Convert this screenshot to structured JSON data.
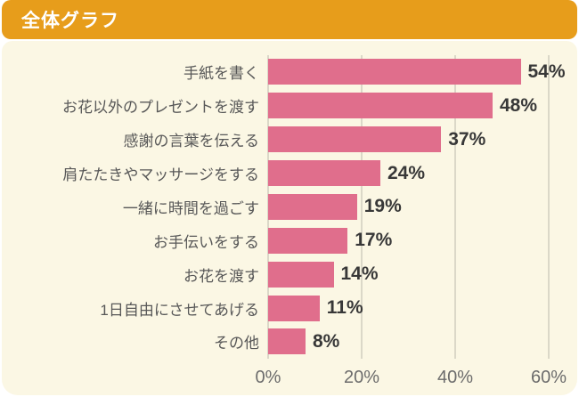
{
  "header": {
    "title": "全体グラフ",
    "background_color": "#E79D1B",
    "text_color": "#FFFFFF"
  },
  "chart_data": {
    "type": "bar",
    "orientation": "horizontal",
    "categories": [
      "手紙を書く",
      "お花以外のプレゼントを渡す",
      "感謝の言葉を伝える",
      "肩たたきやマッサージをする",
      "一緒に時間を過ごす",
      "お手伝いをする",
      "お花を渡す",
      "1日自由にさせてあげる",
      "その他"
    ],
    "values": [
      54,
      48,
      37,
      24,
      19,
      17,
      14,
      11,
      8
    ],
    "value_labels": [
      "54%",
      "48%",
      "37%",
      "24%",
      "19%",
      "17%",
      "14%",
      "11%",
      "8%"
    ],
    "xlim": [
      0,
      62
    ],
    "x_ticks": [
      0,
      20,
      40,
      60
    ],
    "x_tick_labels": [
      "0%",
      "20%",
      "40%",
      "60%"
    ],
    "bar_color": "#E06E8C",
    "grid": true,
    "legend": false,
    "background_color": "#FBF7E4",
    "gridline_color": "#DBD8C8"
  }
}
